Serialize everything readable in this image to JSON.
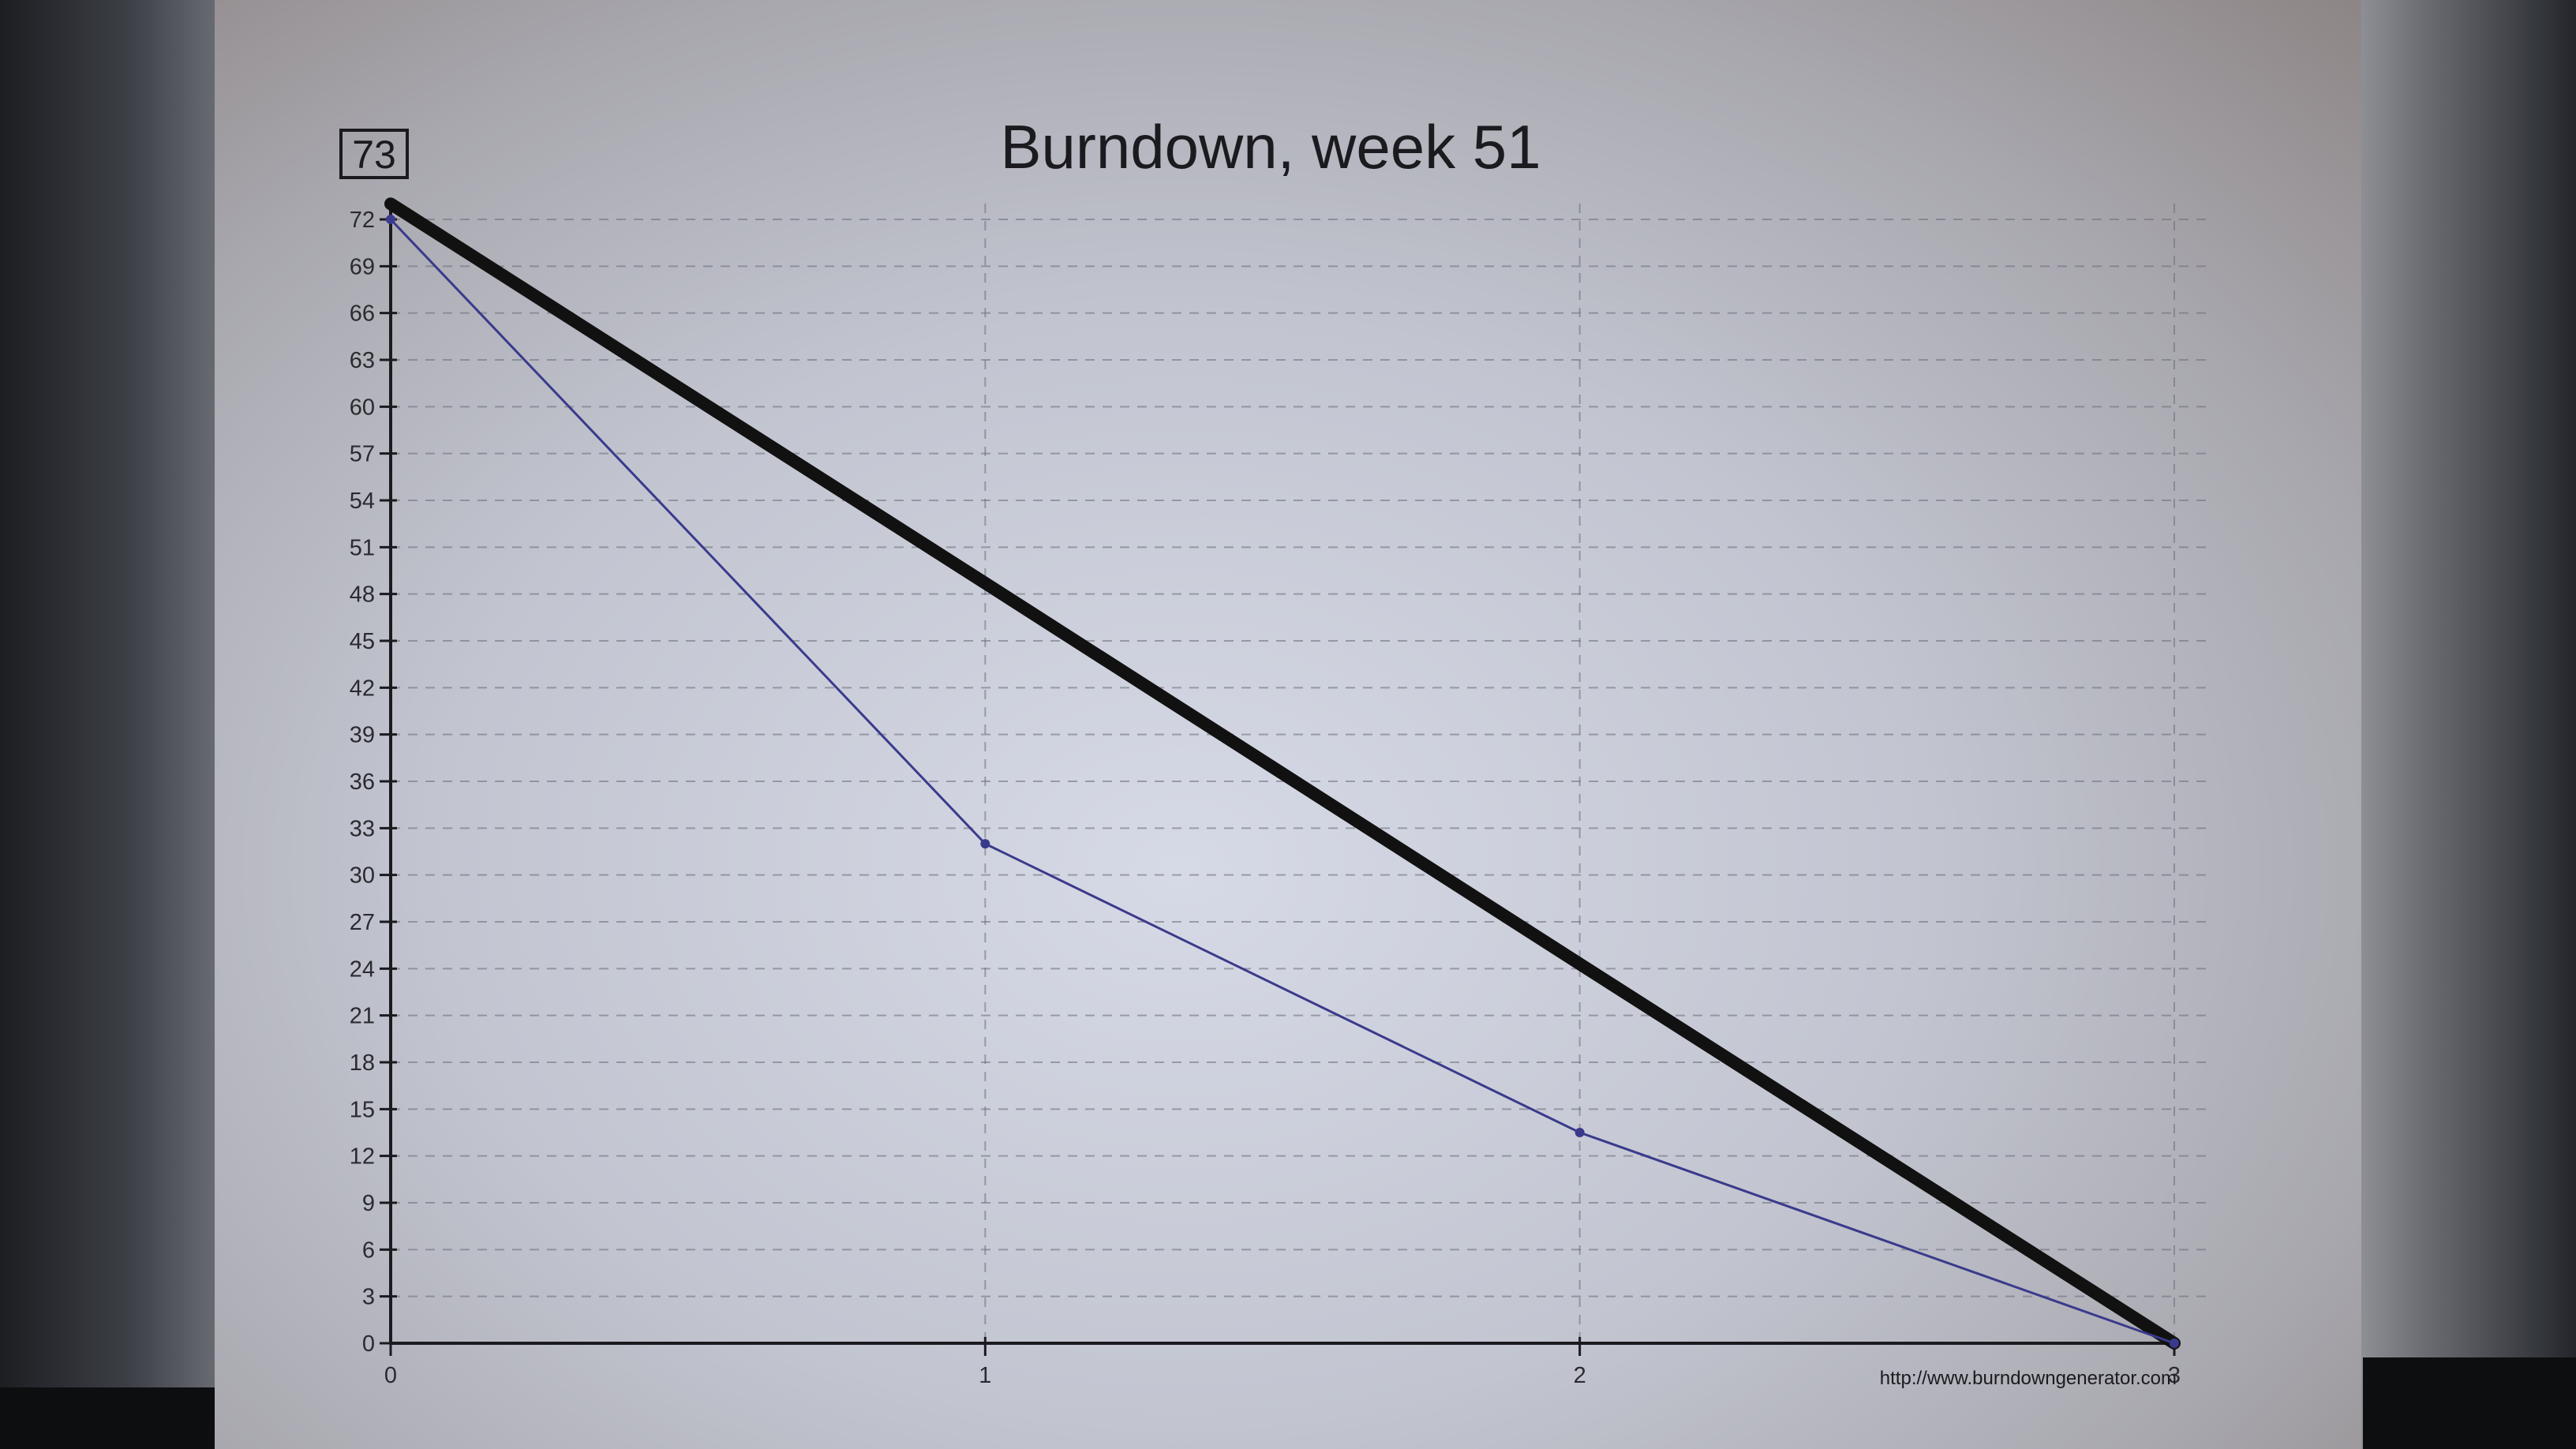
{
  "chart_data": {
    "type": "line",
    "title": "Burndown, week 51",
    "total_box": "73",
    "source_url": "http://www.burndowngenerator.com",
    "x": [
      0,
      1,
      2,
      3
    ],
    "x_ticks": [
      "0",
      "1",
      "2",
      "3"
    ],
    "y_ticks": [
      "0",
      "3",
      "6",
      "9",
      "12",
      "15",
      "18",
      "21",
      "24",
      "27",
      "30",
      "33",
      "36",
      "39",
      "42",
      "45",
      "48",
      "51",
      "54",
      "57",
      "60",
      "63",
      "66",
      "69",
      "72"
    ],
    "xlim": [
      0,
      3
    ],
    "ylim": [
      0,
      72
    ],
    "grid": true,
    "series": [
      {
        "role": "ideal",
        "color": "#111111",
        "values": [
          73,
          48.7,
          24.3,
          0
        ]
      },
      {
        "role": "actual",
        "color": "#3a3a8c",
        "values": [
          72,
          32,
          13.5,
          0
        ]
      }
    ]
  }
}
